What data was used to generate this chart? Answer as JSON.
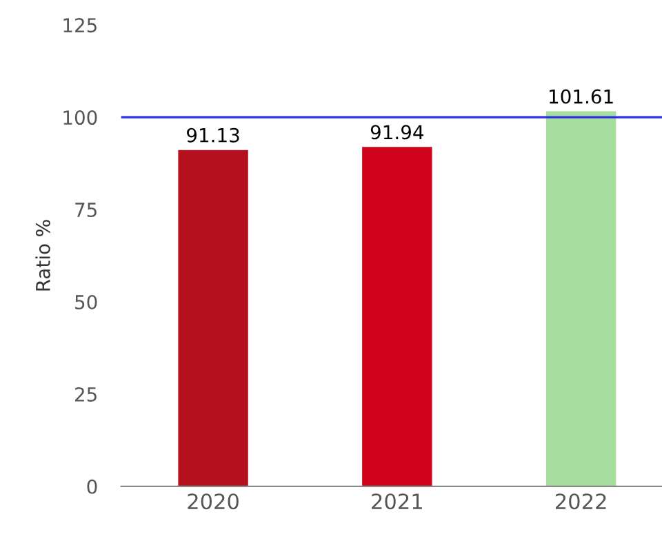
{
  "chart_data": {
    "type": "bar",
    "ylabel": "Ratio %",
    "categories": [
      "2020",
      "2021",
      "2022"
    ],
    "values": [
      91.13,
      91.94,
      101.61
    ],
    "colors": [
      "#b5101e",
      "#d0021b",
      "#a6dea0"
    ],
    "ylim": [
      0,
      125
    ],
    "yticks": [
      0,
      25,
      50,
      75,
      100,
      125
    ],
    "grid": false,
    "data_labels": true,
    "ref_lines": [
      {
        "axis": "y",
        "value": 100,
        "color": "#3030e0",
        "line_style": "solid"
      }
    ]
  }
}
